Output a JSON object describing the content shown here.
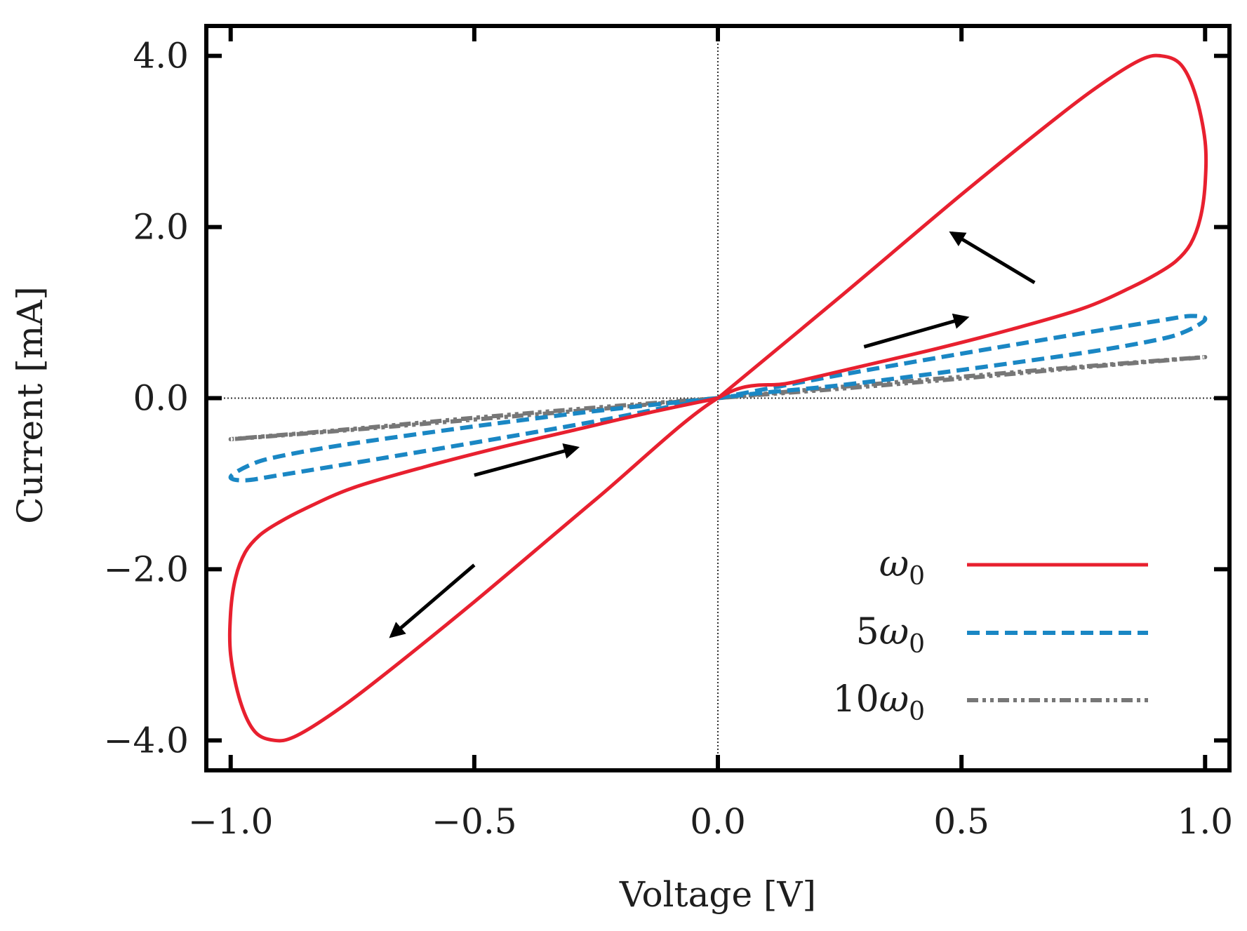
{
  "chart_data": {
    "type": "line",
    "title": "",
    "xlabel": "Voltage [V]",
    "ylabel": "Current [mA]",
    "xlim": [
      -1.05,
      1.05
    ],
    "ylim": [
      -4.35,
      4.35
    ],
    "grid": false,
    "zero_lines": true,
    "legend_position": "bottom-right",
    "x_ticks": [
      {
        "value": -1.0,
        "label": "−1.0"
      },
      {
        "value": -0.5,
        "label": "−0.5"
      },
      {
        "value": 0.0,
        "label": "0.0"
      },
      {
        "value": 0.5,
        "label": "0.5"
      },
      {
        "value": 1.0,
        "label": "1.0"
      }
    ],
    "y_ticks": [
      {
        "value": 4.0,
        "label": "4.0"
      },
      {
        "value": 2.0,
        "label": "2.0"
      },
      {
        "value": 0.0,
        "label": "0.0"
      },
      {
        "value": -2.0,
        "label": "−2.0"
      },
      {
        "value": -4.0,
        "label": "−4.0"
      }
    ],
    "series": [
      {
        "name": "ω₀",
        "legend_prefix": "",
        "legend_symbol": "ω",
        "legend_sub": "0",
        "color": "#e8202f",
        "style": "solid",
        "x": [
          0.0,
          0.25,
          0.5,
          0.7,
          0.8,
          0.87,
          0.91,
          0.95,
          0.98,
          1.0,
          1.0,
          0.99,
          0.97,
          0.94,
          0.9,
          0.85,
          0.75,
          0.6,
          0.45,
          0.3,
          0.15,
          0.0,
          -0.25,
          -0.5,
          -0.7,
          -0.8,
          -0.87,
          -0.91,
          -0.95,
          -0.98,
          -1.0,
          -1.0,
          -0.99,
          -0.97,
          -0.94,
          -0.9,
          -0.85,
          -0.75,
          -0.6,
          -0.45,
          -0.3,
          -0.15,
          0.0
        ],
        "y": [
          0.0,
          1.18,
          2.38,
          3.3,
          3.72,
          3.96,
          4.0,
          3.9,
          3.55,
          3.0,
          2.5,
          2.1,
          1.8,
          1.6,
          1.45,
          1.3,
          1.05,
          0.8,
          0.58,
          0.38,
          0.18,
          0.0,
          -1.18,
          -2.38,
          -3.3,
          -3.72,
          -3.96,
          -4.0,
          -3.9,
          -3.55,
          -3.0,
          -2.5,
          -2.1,
          -1.8,
          -1.6,
          -1.45,
          -1.3,
          -1.05,
          -0.8,
          -0.58,
          -0.38,
          -0.18,
          0.0
        ]
      },
      {
        "name": "5ω₀",
        "legend_prefix": "5",
        "legend_symbol": "ω",
        "legend_sub": "0",
        "color": "#1a87c4",
        "style": "dashed",
        "x": [
          0.0,
          0.25,
          0.5,
          0.75,
          0.9,
          0.97,
          1.0,
          0.96,
          0.9,
          0.75,
          0.5,
          0.25,
          0.0,
          -0.25,
          -0.5,
          -0.75,
          -0.9,
          -0.97,
          -1.0,
          -0.96,
          -0.9,
          -0.75,
          -0.5,
          -0.25,
          0.0
        ],
        "y": [
          0.0,
          0.27,
          0.52,
          0.76,
          0.9,
          0.96,
          0.92,
          0.78,
          0.68,
          0.53,
          0.33,
          0.15,
          0.0,
          -0.27,
          -0.52,
          -0.76,
          -0.9,
          -0.96,
          -0.92,
          -0.78,
          -0.68,
          -0.53,
          -0.33,
          -0.15,
          0.0
        ]
      },
      {
        "name": "10ω₀",
        "legend_prefix": "10",
        "legend_symbol": "ω",
        "legend_sub": "0",
        "color": "#777777",
        "style": "dashdot",
        "x": [
          0.0,
          0.25,
          0.5,
          0.75,
          1.0,
          0.75,
          0.5,
          0.25,
          0.0,
          -0.25,
          -0.5,
          -0.75,
          -1.0,
          -0.75,
          -0.5,
          -0.25,
          0.0
        ],
        "y": [
          0.0,
          0.13,
          0.25,
          0.37,
          0.48,
          0.36,
          0.23,
          0.11,
          0.0,
          -0.13,
          -0.25,
          -0.37,
          -0.48,
          -0.36,
          -0.23,
          -0.11,
          0.0
        ]
      }
    ],
    "annotations": [
      {
        "type": "arrow",
        "from": [
          0.65,
          1.35
        ],
        "to": [
          0.48,
          1.93
        ]
      },
      {
        "type": "arrow",
        "from": [
          0.3,
          0.6
        ],
        "to": [
          0.51,
          0.94
        ]
      },
      {
        "type": "arrow",
        "from": [
          -0.5,
          -0.9
        ],
        "to": [
          -0.29,
          -0.58
        ]
      },
      {
        "type": "arrow",
        "from": [
          -0.5,
          -1.95
        ],
        "to": [
          -0.67,
          -2.78
        ]
      }
    ]
  }
}
